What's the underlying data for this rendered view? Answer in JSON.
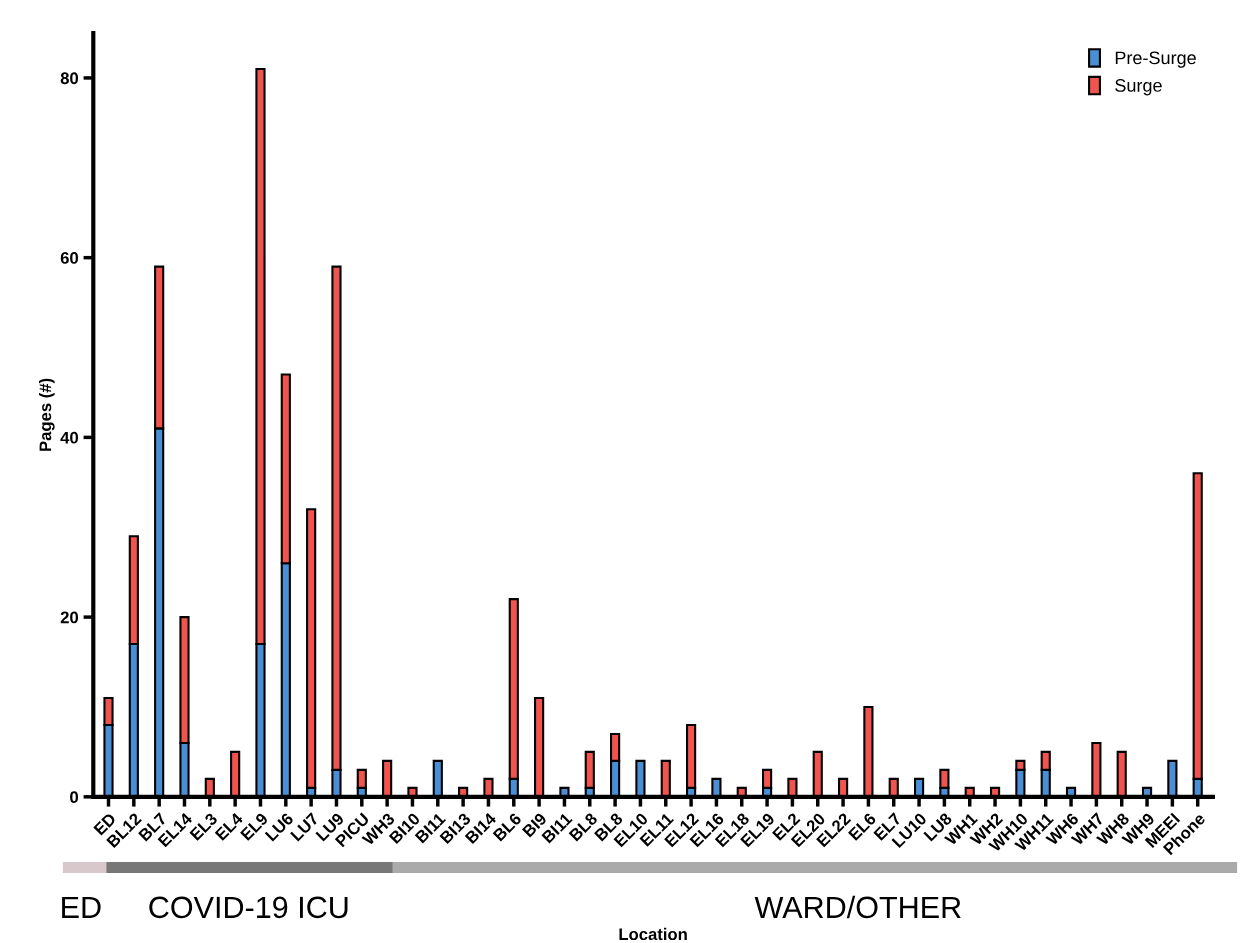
{
  "chart_data": {
    "type": "bar",
    "stacked": true,
    "xlabel": "Location",
    "ylabel": "Pages (#)",
    "categories": [
      "ED",
      "BL12",
      "BL7",
      "EL14",
      "EL3",
      "EL4",
      "EL9",
      "LU6",
      "LU7",
      "LU9",
      "PICU",
      "WH3",
      "BI10",
      "BI11",
      "BI13",
      "BI14",
      "BL6",
      "BI9",
      "BI11",
      "BL8",
      "BL8",
      "EL10",
      "EL11",
      "EL12",
      "EL16",
      "EL18",
      "EL19",
      "EL2",
      "EL20",
      "EL22",
      "EL6",
      "EL7",
      "LU10",
      "LU8",
      "WH1",
      "WH2",
      "WH10",
      "WH11",
      "WH6",
      "WH7",
      "WH8",
      "WH9",
      "MEEI",
      "Phone"
    ],
    "series": [
      {
        "name": "Pre-Surge",
        "color": "#4a8fd6",
        "values": [
          8,
          17,
          41,
          6,
          0,
          0,
          17,
          26,
          1,
          3,
          1,
          0,
          0,
          4,
          0,
          0,
          2,
          0,
          1,
          1,
          4,
          4,
          0,
          1,
          2,
          0,
          1,
          0,
          0,
          0,
          0,
          0,
          2,
          1,
          0,
          0,
          3,
          3,
          1,
          0,
          0,
          1,
          4,
          2
        ]
      },
      {
        "name": "Surge",
        "color": "#f0544f",
        "values": [
          3,
          12,
          18,
          14,
          2,
          5,
          64,
          21,
          31,
          56,
          2,
          4,
          1,
          0,
          1,
          2,
          20,
          11,
          0,
          4,
          3,
          0,
          4,
          7,
          0,
          1,
          2,
          2,
          5,
          2,
          10,
          2,
          0,
          2,
          1,
          1,
          1,
          2,
          0,
          6,
          5,
          0,
          0,
          34
        ]
      }
    ],
    "ylim": [
      0,
      85
    ],
    "yticks": [
      0,
      20,
      40,
      60,
      80
    ],
    "legend": "top right",
    "annotations": [
      "ED",
      "COVID-19 ICU",
      "WARD/OTHER"
    ]
  }
}
